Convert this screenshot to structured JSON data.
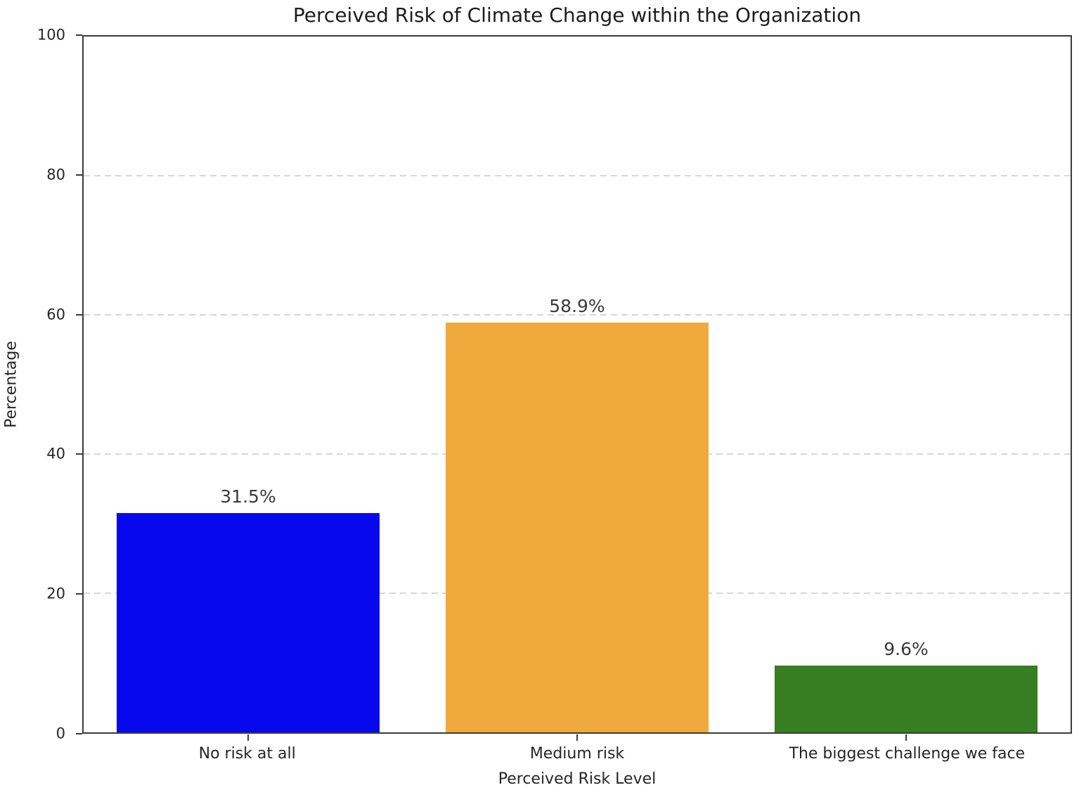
{
  "chart_data": {
    "type": "bar",
    "title": "Perceived Risk of Climate Change within the Organization",
    "xlabel": "Perceived Risk Level",
    "ylabel": "Percentage",
    "ylim": [
      0,
      100
    ],
    "yticks": [
      0,
      20,
      40,
      60,
      80,
      100
    ],
    "grid": "horizontal dashed gridlines at 20, 40, 60, 80",
    "gridline_color": "#d7d7d7",
    "spine_color": "#3b3b3b",
    "categories": [
      "No risk at all",
      "Medium risk",
      "The biggest challenge we face"
    ],
    "values": [
      31.5,
      58.9,
      9.6
    ],
    "value_labels": [
      "31.5%",
      "58.9%",
      "9.6%"
    ],
    "bar_colors": [
      "#0808ee",
      "#f0a93c",
      "#377d22"
    ]
  }
}
